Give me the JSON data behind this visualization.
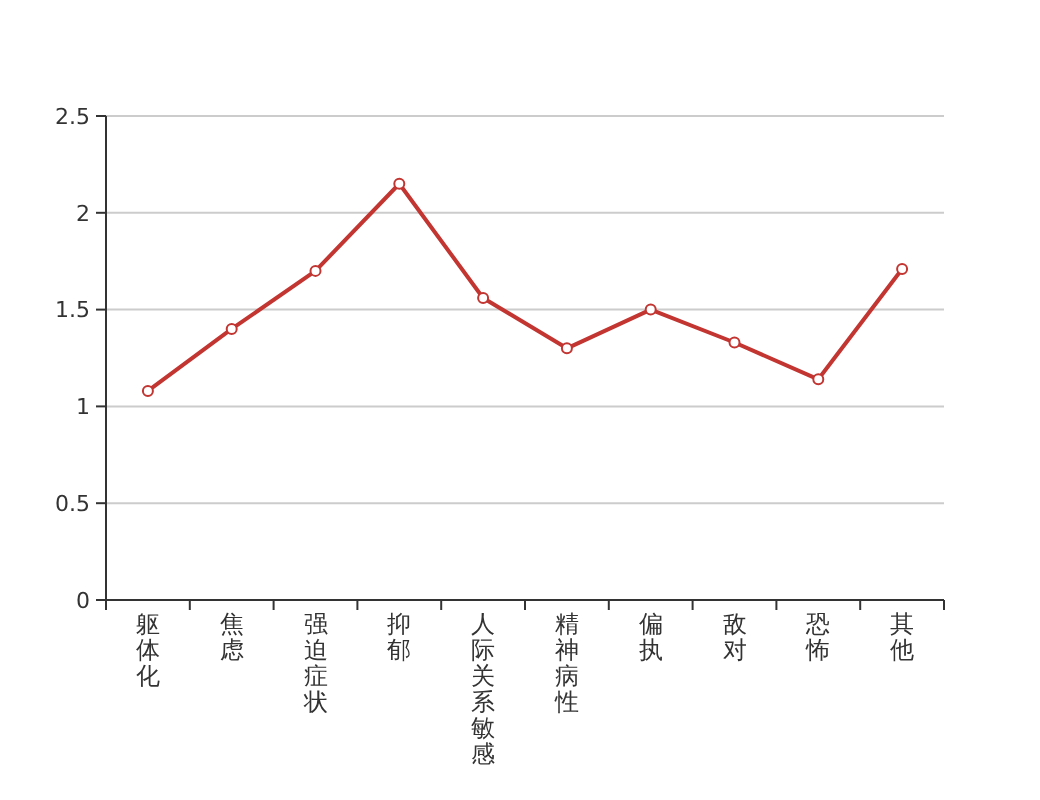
{
  "chart_data": {
    "type": "line",
    "categories": [
      "躯体化",
      "焦虑",
      "强迫症状",
      "抑郁",
      "人际关系敏感",
      "精神病性",
      "偏执",
      "敌对",
      "恐怖",
      "其他"
    ],
    "series": [
      {
        "color": "#c23531",
        "values": [
          1.08,
          1.4,
          1.7,
          2.15,
          1.56,
          1.3,
          1.5,
          1.33,
          1.14,
          1.71
        ]
      }
    ],
    "ylim": [
      0,
      2.5
    ],
    "yticks": [
      0,
      0.5,
      1,
      1.5,
      2,
      2.5
    ],
    "grid": "y",
    "marker": "circle",
    "line_style": "solid"
  }
}
